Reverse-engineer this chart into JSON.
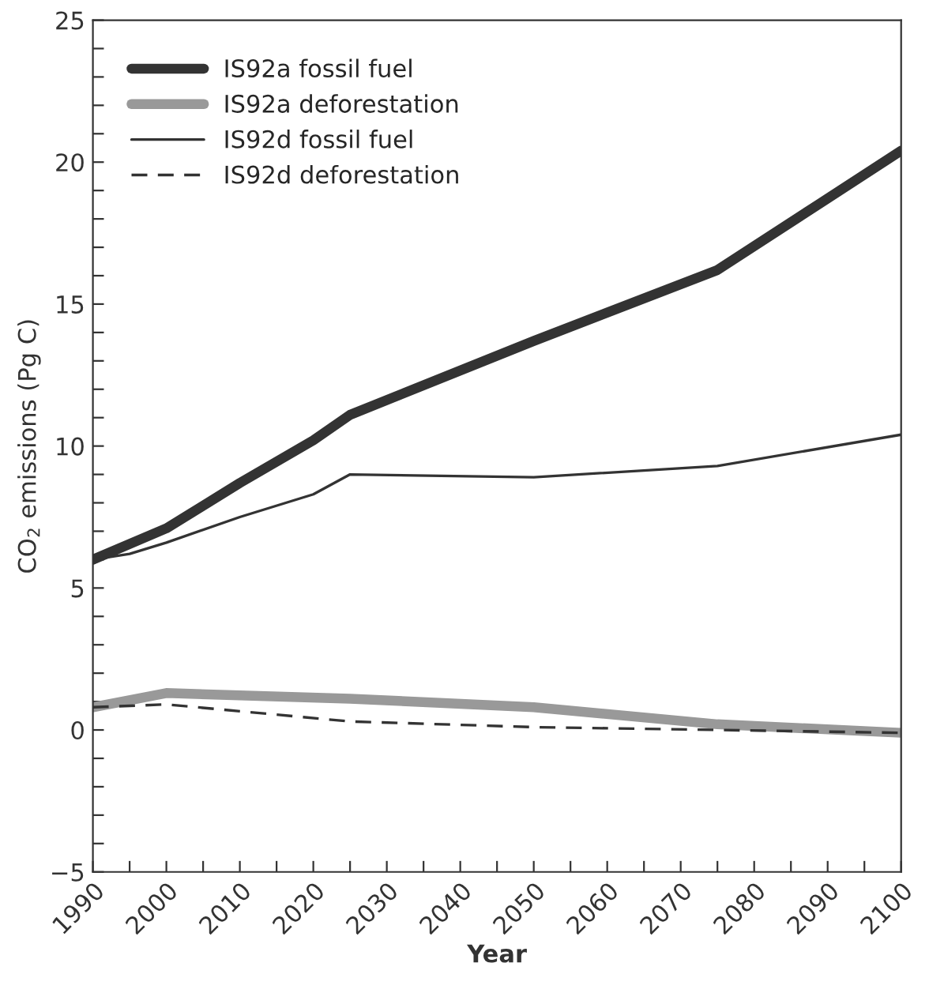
{
  "chart_data": {
    "type": "line",
    "xlabel": "Year",
    "ylabel": "CO$_{2}$ emissions (Pg C)",
    "xlim": [
      1990,
      2100
    ],
    "ylim": [
      -5,
      25
    ],
    "xticks": [
      1990,
      {
        "value": 1995,
        "label": null
      },
      2000,
      {
        "value": 2005,
        "label": null
      },
      2010,
      {
        "value": 2015,
        "label": null
      },
      2020,
      {
        "value": 2025,
        "label": null
      },
      2030,
      {
        "value": 2035,
        "label": null
      },
      2040,
      {
        "value": 2045,
        "label": null
      },
      2050,
      {
        "value": 2055,
        "label": null
      },
      2060,
      {
        "value": 2065,
        "label": null
      },
      2070,
      {
        "value": 2075,
        "label": null
      },
      2080,
      {
        "value": 2085,
        "label": null
      },
      2090,
      {
        "value": 2095,
        "label": null
      },
      2100
    ],
    "yticks": [
      {
        "value": -5,
        "label": "−5"
      },
      {
        "value": -4,
        "label": null
      },
      {
        "value": -3,
        "label": null
      },
      {
        "value": -2,
        "label": null
      },
      {
        "value": -1,
        "label": null
      },
      0,
      {
        "value": 1,
        "label": null
      },
      {
        "value": 2,
        "label": null
      },
      {
        "value": 3,
        "label": null
      },
      {
        "value": 4,
        "label": null
      },
      5,
      {
        "value": 6,
        "label": null
      },
      {
        "value": 7,
        "label": null
      },
      {
        "value": 8,
        "label": null
      },
      {
        "value": 9,
        "label": null
      },
      10,
      {
        "value": 11,
        "label": null
      },
      {
        "value": 12,
        "label": null
      },
      {
        "value": 13,
        "label": null
      },
      {
        "value": 14,
        "label": null
      },
      15,
      {
        "value": 16,
        "label": null
      },
      {
        "value": 17,
        "label": null
      },
      {
        "value": 18,
        "label": null
      },
      {
        "value": 19,
        "label": null
      },
      20,
      {
        "value": 21,
        "label": null
      },
      {
        "value": 22,
        "label": null
      },
      {
        "value": 23,
        "label": null
      },
      {
        "value": 24,
        "label": null
      },
      25
    ],
    "grid": false,
    "legend": "top left",
    "marker": "none",
    "series": [
      {
        "name": "IS92a fossil fuel",
        "color": "#333333",
        "x": [
          1990,
          2000,
          2010,
          2020,
          2025,
          2050,
          2075,
          2100
        ],
        "values": [
          6.0,
          7.1,
          8.7,
          10.2,
          11.1,
          13.7,
          16.2,
          20.4
        ],
        "line_style": "solid"
      },
      {
        "name": "IS92a deforestation",
        "color": "#999999",
        "x": [
          1990,
          2000,
          2025,
          2050,
          2075,
          2100
        ],
        "values": [
          0.8,
          1.3,
          1.1,
          0.8,
          0.2,
          -0.1
        ],
        "line_style": "solid"
      },
      {
        "name": "IS92d fossil fuel",
        "color": "#333333",
        "x": [
          1990,
          1995,
          2000,
          2010,
          2020,
          2025,
          2050,
          2075,
          2100
        ],
        "values": [
          6.0,
          6.2,
          6.6,
          7.5,
          8.3,
          9.0,
          8.9,
          9.3,
          10.4
        ],
        "line_style": "solid"
      },
      {
        "name": "IS92d deforestation",
        "color": "#333333",
        "x": [
          1990,
          2000,
          2025,
          2050,
          2075,
          2100
        ],
        "values": [
          0.8,
          0.9,
          0.3,
          0.1,
          0.0,
          -0.1
        ],
        "line_style": "dashed"
      }
    ]
  }
}
